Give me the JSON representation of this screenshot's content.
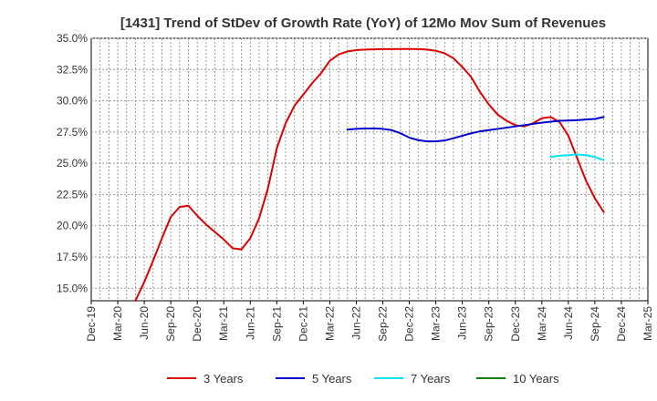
{
  "chart_data": {
    "type": "line",
    "title": "[1431]  Trend of StDev of Growth Rate (YoY) of 12Mo Mov Sum of Revenues",
    "xlabel": "",
    "ylabel": "",
    "ylim": [
      14,
      35
    ],
    "y_ticks": [
      15.0,
      17.5,
      20.0,
      22.5,
      25.0,
      27.5,
      30.0,
      32.5,
      35.0
    ],
    "y_tick_labels": [
      "15.0%",
      "17.5%",
      "20.0%",
      "22.5%",
      "25.0%",
      "27.5%",
      "30.0%",
      "32.5%",
      "35.0%"
    ],
    "x_tick_labels": [
      "Dec-19",
      "Mar-20",
      "Jun-20",
      "Sep-20",
      "Dec-20",
      "Mar-21",
      "Jun-21",
      "Sep-21",
      "Dec-21",
      "Mar-22",
      "Jun-22",
      "Sep-22",
      "Dec-22",
      "Mar-23",
      "Jun-23",
      "Sep-23",
      "Dec-23",
      "Mar-24",
      "Jun-24",
      "Sep-24",
      "Dec-24",
      "Mar-25"
    ],
    "x_unit": "months since Dec-19",
    "xlim": [
      0,
      63
    ],
    "grid": true,
    "legend_position": "bottom",
    "series": [
      {
        "name": "3 Years",
        "color": "#dd0000",
        "points": [
          [
            5,
            14.0
          ],
          [
            6,
            15.5
          ],
          [
            7,
            17.2
          ],
          [
            8,
            19.0
          ],
          [
            9,
            20.7
          ],
          [
            10,
            21.5
          ],
          [
            11,
            21.6
          ],
          [
            12,
            20.8
          ],
          [
            13,
            20.1
          ],
          [
            14,
            19.5
          ],
          [
            15,
            18.9
          ],
          [
            16,
            18.2
          ],
          [
            17,
            18.1
          ],
          [
            18,
            19.0
          ],
          [
            19,
            20.6
          ],
          [
            20,
            23.0
          ],
          [
            21,
            26.2
          ],
          [
            22,
            28.2
          ],
          [
            23,
            29.6
          ],
          [
            24,
            30.5
          ],
          [
            25,
            31.4
          ],
          [
            26,
            32.2
          ],
          [
            27,
            33.2
          ],
          [
            28,
            33.7
          ],
          [
            29,
            33.95
          ],
          [
            30,
            34.05
          ],
          [
            31,
            34.1
          ],
          [
            32,
            34.12
          ],
          [
            33,
            34.13
          ],
          [
            34,
            34.13
          ],
          [
            35,
            34.14
          ],
          [
            36,
            34.14
          ],
          [
            37,
            34.13
          ],
          [
            38,
            34.1
          ],
          [
            39,
            34.0
          ],
          [
            40,
            33.8
          ],
          [
            41,
            33.4
          ],
          [
            42,
            32.7
          ],
          [
            43,
            31.9
          ],
          [
            44,
            30.7
          ],
          [
            45,
            29.7
          ],
          [
            46,
            28.9
          ],
          [
            47,
            28.4
          ],
          [
            48,
            28.05
          ],
          [
            49,
            27.95
          ],
          [
            50,
            28.2
          ],
          [
            51,
            28.6
          ],
          [
            52,
            28.7
          ],
          [
            53,
            28.3
          ],
          [
            54,
            27.2
          ],
          [
            55,
            25.4
          ],
          [
            56,
            23.6
          ],
          [
            57,
            22.2
          ],
          [
            58,
            21.1
          ]
        ]
      },
      {
        "name": "5 Years",
        "color": "#0000cc",
        "points": [
          [
            29,
            27.7
          ],
          [
            30,
            27.75
          ],
          [
            31,
            27.78
          ],
          [
            32,
            27.79
          ],
          [
            33,
            27.75
          ],
          [
            34,
            27.65
          ],
          [
            35,
            27.4
          ],
          [
            36,
            27.05
          ],
          [
            37,
            26.85
          ],
          [
            38,
            26.75
          ],
          [
            39,
            26.75
          ],
          [
            40,
            26.82
          ],
          [
            41,
            27.0
          ],
          [
            42,
            27.2
          ],
          [
            43,
            27.4
          ],
          [
            44,
            27.55
          ],
          [
            45,
            27.65
          ],
          [
            46,
            27.75
          ],
          [
            47,
            27.85
          ],
          [
            48,
            27.95
          ],
          [
            49,
            28.05
          ],
          [
            50,
            28.15
          ],
          [
            51,
            28.25
          ],
          [
            52,
            28.33
          ],
          [
            53,
            28.4
          ],
          [
            54,
            28.42
          ],
          [
            55,
            28.45
          ],
          [
            56,
            28.5
          ],
          [
            57,
            28.55
          ],
          [
            58,
            28.7
          ]
        ]
      },
      {
        "name": "7 Years",
        "color": "#00e5ee",
        "points": [
          [
            52,
            25.5
          ],
          [
            53,
            25.6
          ],
          [
            54,
            25.65
          ],
          [
            55,
            25.7
          ],
          [
            56,
            25.65
          ],
          [
            57,
            25.5
          ],
          [
            58,
            25.25
          ]
        ]
      },
      {
        "name": "10 Years",
        "color": "#008000",
        "points": []
      }
    ]
  }
}
